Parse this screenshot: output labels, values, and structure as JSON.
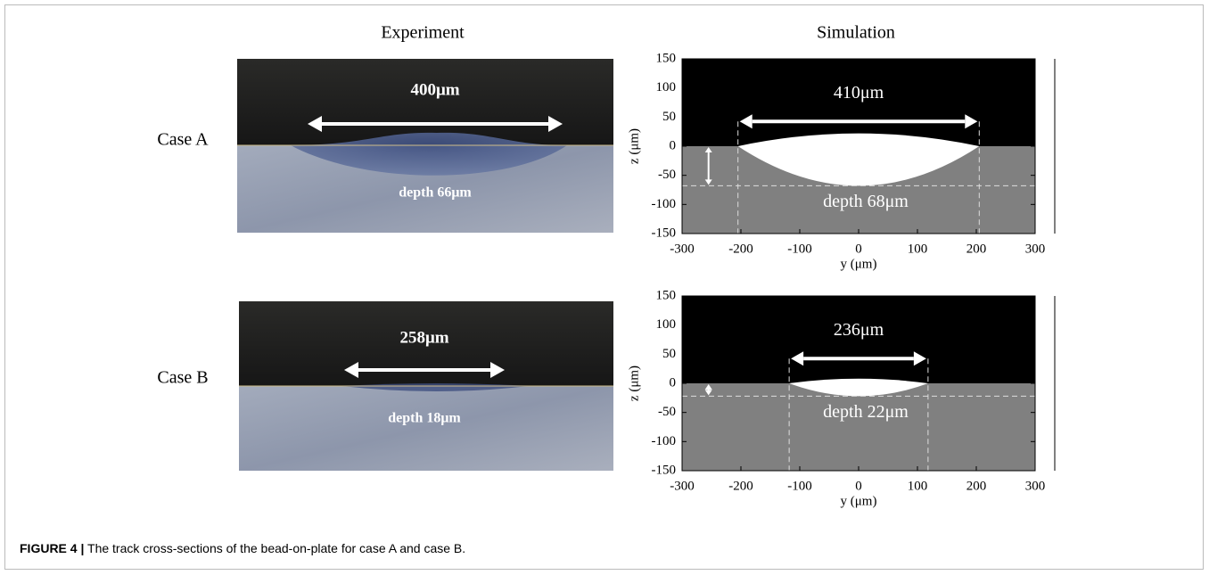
{
  "figure": {
    "column_titles": [
      "Experiment",
      "Simulation"
    ],
    "caption_label": "FIGURE 4 |",
    "caption": "The track cross-sections of the bead-on-plate for case A and case B."
  },
  "axes": {
    "xlabel": "y (μm)",
    "ylabel": "z (μm)",
    "xlim": [
      -300,
      300
    ],
    "ylim": [
      -150,
      150
    ],
    "xticks": [
      -300,
      -200,
      -100,
      0,
      100,
      200,
      300
    ],
    "yticks": [
      -150,
      -100,
      -50,
      0,
      50,
      100,
      150
    ]
  },
  "cases": [
    {
      "label": "Case A",
      "experiment": {
        "width_label": "400μm",
        "depth_label": "depth 66μm"
      },
      "simulation": {
        "width_label": "410μm",
        "depth_label": "depth 68μm",
        "width": 410,
        "depth": 68,
        "bead_height": 22
      }
    },
    {
      "label": "Case B",
      "experiment": {
        "width_label": "258μm",
        "depth_label": "depth 18μm"
      },
      "simulation": {
        "width_label": "236μm",
        "depth_label": "depth 22μm",
        "width": 236,
        "depth": 22,
        "bead_height": 8
      }
    }
  ]
}
